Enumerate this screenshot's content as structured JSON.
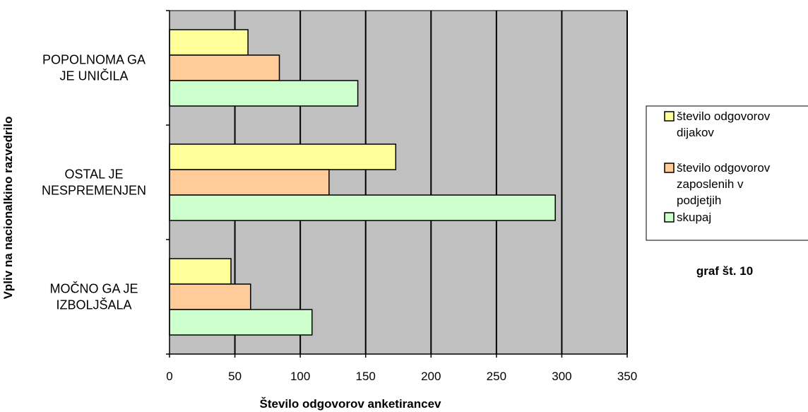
{
  "chart_data": {
    "type": "bar",
    "orientation": "horizontal",
    "categories": [
      "POPOLNOMA GA JE UNIČILA",
      "OSTAL JE NESPREMENJEN",
      "MOČNO GA JE IZBOLJŠALA"
    ],
    "category_lines": [
      [
        "POPOLNOMA GA",
        "JE UNIČILA"
      ],
      [
        "OSTAL JE",
        "NESPREMENJEN"
      ],
      [
        "MOČNO GA JE",
        "IZBOLJŠALA"
      ]
    ],
    "series": [
      {
        "name": "število odgovorov dijakov",
        "legend_lines": [
          "število odgovorov",
          "dijakov"
        ],
        "color": "#FFFF99",
        "values": [
          60,
          173,
          47
        ]
      },
      {
        "name": "število odgovorov zaposlenih v podjetjih",
        "legend_lines": [
          "število odgovorov",
          "zaposlenih v",
          "podjetjih"
        ],
        "color": "#FFCC99",
        "values": [
          84,
          122,
          62
        ]
      },
      {
        "name": "skupaj",
        "legend_lines": [
          "skupaj"
        ],
        "color": "#CCFFCC",
        "values": [
          144,
          295,
          109
        ]
      }
    ],
    "xlabel": "Število odgovorov anketirancev",
    "ylabel": "Vpliv na nacionalkino razvedrilo",
    "xlim": [
      0,
      350
    ],
    "xticks": [
      0,
      50,
      100,
      150,
      200,
      250,
      300,
      350
    ],
    "grid": "vertical",
    "plot_background": "#C0C0C0",
    "legend_position": "right"
  },
  "caption": "graf št. 10"
}
